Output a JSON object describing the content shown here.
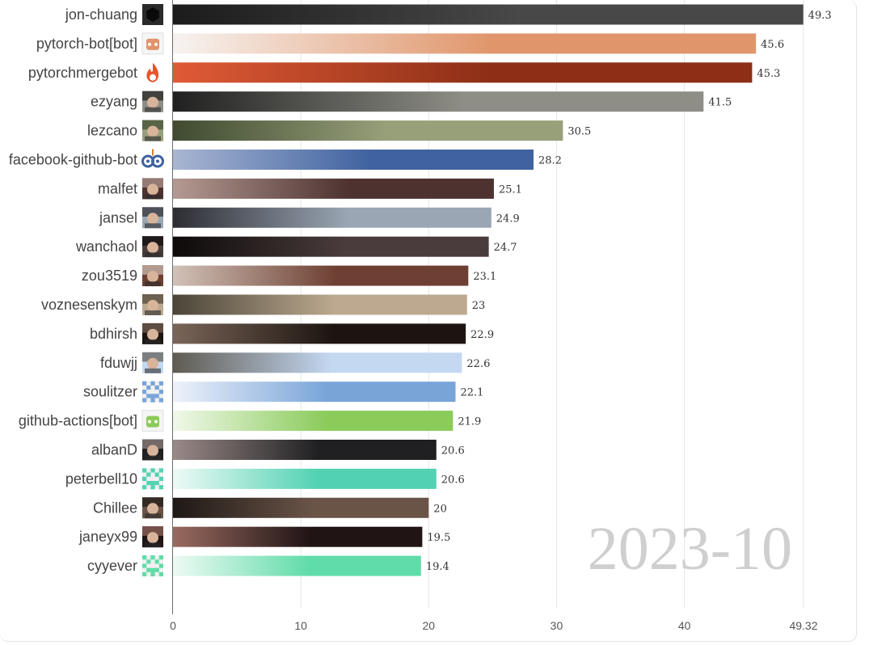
{
  "chart_data": {
    "type": "bar",
    "orientation": "horizontal",
    "period": "2023-10",
    "xlim": [
      0,
      49.32
    ],
    "x_ticks": [
      "0",
      "10",
      "20",
      "30",
      "40",
      "49.32"
    ],
    "x_tick_values": [
      0,
      10,
      20,
      30,
      40,
      49.32
    ],
    "grid": true,
    "title": "",
    "xlabel": "",
    "ylabel": "",
    "bars": [
      {
        "name": "jon-chuang",
        "value": 49.3,
        "label": "49.3",
        "avatar_icon": "hexagon-avatar-icon",
        "colors": [
          "#1c1c1c",
          "#484848"
        ]
      },
      {
        "name": "pytorch-bot[bot]",
        "value": 45.6,
        "label": "45.6",
        "avatar_icon": "bot-avatar-icon",
        "colors": [
          "#f7f3f1",
          "#e0956a"
        ]
      },
      {
        "name": "pytorchmergebot",
        "value": 45.3,
        "label": "45.3",
        "avatar_icon": "flame-avatar-icon",
        "colors": [
          "#e05a36",
          "#8c2f16"
        ]
      },
      {
        "name": "ezyang",
        "value": 41.5,
        "label": "41.5",
        "avatar_icon": "photo-avatar-icon",
        "colors": [
          "#202020",
          "#8e8e86"
        ]
      },
      {
        "name": "lezcano",
        "value": 30.5,
        "label": "30.5",
        "avatar_icon": "photo-avatar-icon",
        "colors": [
          "#3f4a30",
          "#98a07a"
        ]
      },
      {
        "name": "facebook-github-bot",
        "value": 28.2,
        "label": "28.2",
        "avatar_icon": "owl-avatar-icon",
        "colors": [
          "#a9b6d3",
          "#3f62a0"
        ]
      },
      {
        "name": "malfet",
        "value": 25.1,
        "label": "25.1",
        "avatar_icon": "photo-avatar-icon",
        "colors": [
          "#b49a92",
          "#4d3230"
        ]
      },
      {
        "name": "jansel",
        "value": 24.9,
        "label": "24.9",
        "avatar_icon": "photo-avatar-icon",
        "colors": [
          "#2d2d33",
          "#9aa6b4"
        ]
      },
      {
        "name": "wanchaol",
        "value": 24.7,
        "label": "24.7",
        "avatar_icon": "photo-avatar-icon",
        "colors": [
          "#0e0a0a",
          "#4a3c3c"
        ]
      },
      {
        "name": "zou3519",
        "value": 23.1,
        "label": "23.1",
        "avatar_icon": "photo-avatar-icon",
        "colors": [
          "#d2c2b8",
          "#6e4033"
        ]
      },
      {
        "name": "voznesenskym",
        "value": 23.0,
        "label": "23",
        "avatar_icon": "photo-avatar-icon",
        "colors": [
          "#4b4538",
          "#bca98f"
        ]
      },
      {
        "name": "bdhirsh",
        "value": 22.9,
        "label": "22.9",
        "avatar_icon": "photo-avatar-icon",
        "colors": [
          "#7a6558",
          "#1c1410"
        ]
      },
      {
        "name": "fduwjj",
        "value": 22.6,
        "label": "22.6",
        "avatar_icon": "photo-avatar-icon",
        "colors": [
          "#5e5a50",
          "#c4d8f2"
        ]
      },
      {
        "name": "soulitzer",
        "value": 22.1,
        "label": "22.1",
        "avatar_icon": "pixel-avatar-icon",
        "colors": [
          "#eef2fa",
          "#78a4d8"
        ]
      },
      {
        "name": "github-actions[bot]",
        "value": 21.9,
        "label": "21.9",
        "avatar_icon": "bot-avatar-icon",
        "colors": [
          "#f1f8ea",
          "#8acb5a"
        ]
      },
      {
        "name": "albanD",
        "value": 20.6,
        "label": "20.6",
        "avatar_icon": "photo-avatar-icon",
        "colors": [
          "#9a8a88",
          "#202022"
        ]
      },
      {
        "name": "peterbell10",
        "value": 20.6,
        "label": "20.6",
        "avatar_icon": "pixel-avatar-icon",
        "colors": [
          "#eefaf6",
          "#52d2b2"
        ]
      },
      {
        "name": "Chillee",
        "value": 20.0,
        "label": "20",
        "avatar_icon": "photo-avatar-icon",
        "colors": [
          "#1e1816",
          "#6a5448"
        ]
      },
      {
        "name": "janeyx99",
        "value": 19.5,
        "label": "19.5",
        "avatar_icon": "photo-avatar-icon",
        "colors": [
          "#9a6a60",
          "#201414"
        ]
      },
      {
        "name": "cyyever",
        "value": 19.4,
        "label": "19.4",
        "avatar_icon": "pixel-avatar-icon",
        "colors": [
          "#eefaf4",
          "#60dca8"
        ]
      }
    ]
  }
}
